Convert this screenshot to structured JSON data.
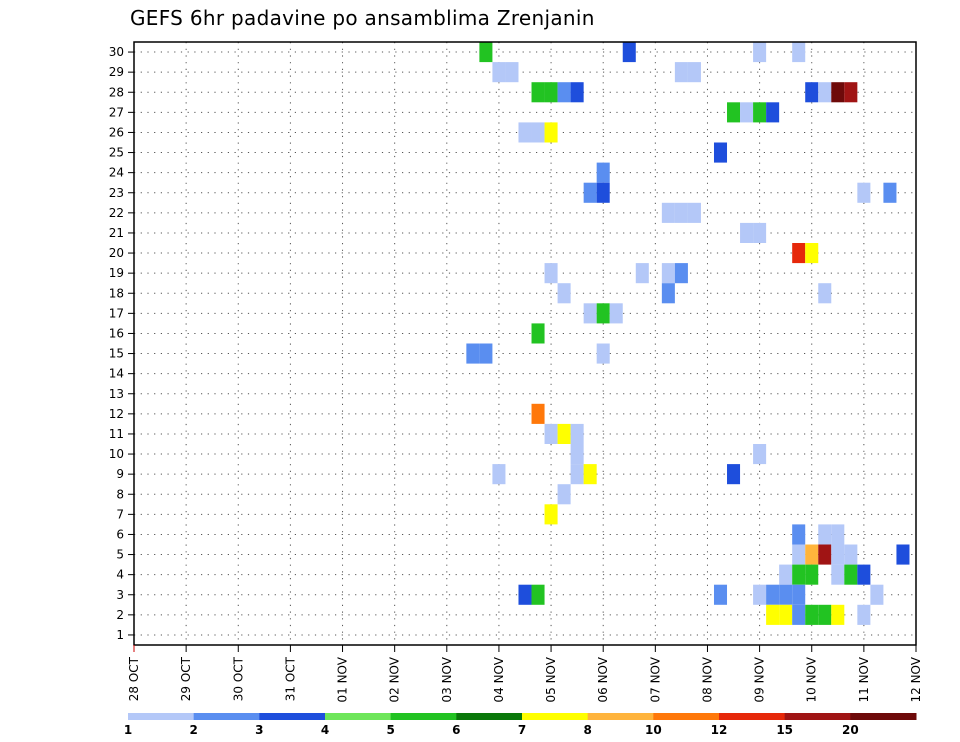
{
  "chart_data": {
    "type": "heatmap",
    "title": "GEFS 6hr padavine po ansamblima Zrenjanin",
    "xlabel": "",
    "ylabel": "",
    "x_ticks": [
      "28 OCT",
      "29 OCT",
      "30 OCT",
      "31 OCT",
      "01 NOV",
      "02 NOV",
      "03 NOV",
      "04 NOV",
      "05 NOV",
      "06 NOV",
      "07 NOV",
      "08 NOV",
      "09 NOV",
      "10 NOV",
      "11 NOV",
      "12 NOV"
    ],
    "xlim": [
      0,
      60
    ],
    "x_step_hours": 6,
    "y_ticks": [
      1,
      2,
      3,
      4,
      5,
      6,
      7,
      8,
      9,
      10,
      11,
      12,
      13,
      14,
      15,
      16,
      17,
      18,
      19,
      20,
      21,
      22,
      23,
      24,
      25,
      26,
      27,
      28,
      29,
      30
    ],
    "ylim": [
      0.5,
      30.5
    ],
    "grid": true,
    "colorbar": {
      "labels": [
        "1",
        "2",
        "3",
        "4",
        "5",
        "6",
        "7",
        "8",
        "10",
        "12",
        "15",
        "20"
      ],
      "colors": [
        "#b4c8f8",
        "#5a8ef0",
        "#1e4edc",
        "#6ee65a",
        "#22c322",
        "#0a780a",
        "#ffff00",
        "#ffb43c",
        "#ff780a",
        "#e6280a",
        "#a01414",
        "#6e0a0a"
      ]
    },
    "cells": [
      {
        "m": 30,
        "t": 27,
        "v": 5
      },
      {
        "m": 30,
        "t": 38,
        "v": 3
      },
      {
        "m": 30,
        "t": 48,
        "v": 1
      },
      {
        "m": 30,
        "t": 51,
        "v": 1
      },
      {
        "m": 29,
        "t": 28,
        "v": 1
      },
      {
        "m": 29,
        "t": 29,
        "v": 1
      },
      {
        "m": 29,
        "t": 42,
        "v": 1
      },
      {
        "m": 29,
        "t": 43,
        "v": 1
      },
      {
        "m": 28,
        "t": 31,
        "v": 5
      },
      {
        "m": 28,
        "t": 32,
        "v": 5
      },
      {
        "m": 28,
        "t": 33,
        "v": 2
      },
      {
        "m": 28,
        "t": 34,
        "v": 3
      },
      {
        "m": 28,
        "t": 52,
        "v": 3
      },
      {
        "m": 28,
        "t": 53,
        "v": 1
      },
      {
        "m": 28,
        "t": 54,
        "v": 20
      },
      {
        "m": 28,
        "t": 55,
        "v": 15
      },
      {
        "m": 27,
        "t": 46,
        "v": 5
      },
      {
        "m": 27,
        "t": 47,
        "v": 1
      },
      {
        "m": 27,
        "t": 48,
        "v": 5
      },
      {
        "m": 27,
        "t": 49,
        "v": 3
      },
      {
        "m": 26,
        "t": 30,
        "v": 1
      },
      {
        "m": 26,
        "t": 31,
        "v": 1
      },
      {
        "m": 26,
        "t": 32,
        "v": 7
      },
      {
        "m": 25,
        "t": 45,
        "v": 3
      },
      {
        "m": 24,
        "t": 36,
        "v": 2
      },
      {
        "m": 23,
        "t": 35,
        "v": 2
      },
      {
        "m": 23,
        "t": 36,
        "v": 3
      },
      {
        "m": 23,
        "t": 56,
        "v": 1
      },
      {
        "m": 23,
        "t": 58,
        "v": 2
      },
      {
        "m": 22,
        "t": 41,
        "v": 1
      },
      {
        "m": 22,
        "t": 42,
        "v": 1
      },
      {
        "m": 22,
        "t": 43,
        "v": 1
      },
      {
        "m": 21,
        "t": 47,
        "v": 1
      },
      {
        "m": 21,
        "t": 48,
        "v": 1
      },
      {
        "m": 20,
        "t": 51,
        "v": 12
      },
      {
        "m": 20,
        "t": 52,
        "v": 7
      },
      {
        "m": 19,
        "t": 32,
        "v": 1
      },
      {
        "m": 19,
        "t": 39,
        "v": 1
      },
      {
        "m": 19,
        "t": 41,
        "v": 1
      },
      {
        "m": 19,
        "t": 42,
        "v": 2
      },
      {
        "m": 18,
        "t": 33,
        "v": 1
      },
      {
        "m": 18,
        "t": 41,
        "v": 2
      },
      {
        "m": 18,
        "t": 53,
        "v": 1
      },
      {
        "m": 17,
        "t": 35,
        "v": 1
      },
      {
        "m": 17,
        "t": 36,
        "v": 5
      },
      {
        "m": 17,
        "t": 37,
        "v": 1
      },
      {
        "m": 16,
        "t": 31,
        "v": 5
      },
      {
        "m": 15,
        "t": 26,
        "v": 2
      },
      {
        "m": 15,
        "t": 27,
        "v": 2
      },
      {
        "m": 15,
        "t": 36,
        "v": 1
      },
      {
        "m": 12,
        "t": 31,
        "v": 10
      },
      {
        "m": 11,
        "t": 32,
        "v": 1
      },
      {
        "m": 11,
        "t": 33,
        "v": 7
      },
      {
        "m": 11,
        "t": 34,
        "v": 1
      },
      {
        "m": 10,
        "t": 34,
        "v": 1
      },
      {
        "m": 10,
        "t": 48,
        "v": 1
      },
      {
        "m": 9,
        "t": 28,
        "v": 1
      },
      {
        "m": 9,
        "t": 34,
        "v": 1
      },
      {
        "m": 9,
        "t": 35,
        "v": 7
      },
      {
        "m": 9,
        "t": 46,
        "v": 3
      },
      {
        "m": 8,
        "t": 33,
        "v": 1
      },
      {
        "m": 7,
        "t": 32,
        "v": 7
      },
      {
        "m": 6,
        "t": 51,
        "v": 2
      },
      {
        "m": 6,
        "t": 53,
        "v": 1
      },
      {
        "m": 6,
        "t": 54,
        "v": 1
      },
      {
        "m": 5,
        "t": 51,
        "v": 1
      },
      {
        "m": 5,
        "t": 52,
        "v": 8
      },
      {
        "m": 5,
        "t": 53,
        "v": 15
      },
      {
        "m": 5,
        "t": 54,
        "v": 1
      },
      {
        "m": 5,
        "t": 55,
        "v": 1
      },
      {
        "m": 5,
        "t": 59,
        "v": 3
      },
      {
        "m": 4,
        "t": 50,
        "v": 1
      },
      {
        "m": 4,
        "t": 51,
        "v": 5
      },
      {
        "m": 4,
        "t": 52,
        "v": 5
      },
      {
        "m": 4,
        "t": 54,
        "v": 1
      },
      {
        "m": 4,
        "t": 55,
        "v": 5
      },
      {
        "m": 4,
        "t": 56,
        "v": 3
      },
      {
        "m": 3,
        "t": 30,
        "v": 3
      },
      {
        "m": 3,
        "t": 31,
        "v": 5
      },
      {
        "m": 3,
        "t": 45,
        "v": 2
      },
      {
        "m": 3,
        "t": 48,
        "v": 1
      },
      {
        "m": 3,
        "t": 49,
        "v": 2
      },
      {
        "m": 3,
        "t": 50,
        "v": 2
      },
      {
        "m": 3,
        "t": 51,
        "v": 2
      },
      {
        "m": 3,
        "t": 57,
        "v": 1
      },
      {
        "m": 2,
        "t": 49,
        "v": 7
      },
      {
        "m": 2,
        "t": 50,
        "v": 7
      },
      {
        "m": 2,
        "t": 51,
        "v": 2
      },
      {
        "m": 2,
        "t": 52,
        "v": 5
      },
      {
        "m": 2,
        "t": 53,
        "v": 5
      },
      {
        "m": 2,
        "t": 54,
        "v": 7
      },
      {
        "m": 2,
        "t": 56,
        "v": 1
      }
    ]
  }
}
